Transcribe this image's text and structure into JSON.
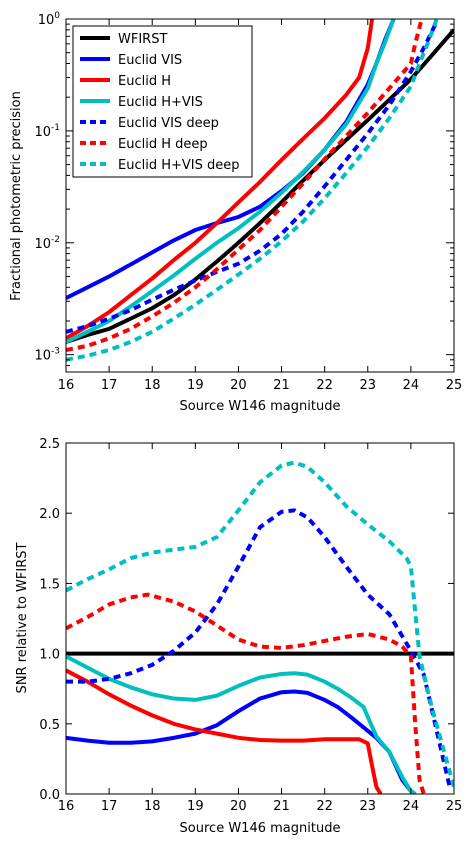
{
  "chart_data": [
    {
      "type": "line",
      "title": "",
      "xlabel": "Source W146 magnitude",
      "ylabel": "Fractional photometric precision",
      "xlim": [
        16,
        25
      ],
      "ylim": [
        0.0007,
        1.0
      ],
      "yscale": "log",
      "grid": false,
      "legend_position": "top-left",
      "xticks": [
        "16",
        "17",
        "18",
        "19",
        "20",
        "21",
        "22",
        "23",
        "24",
        "25"
      ],
      "yticks": [
        {
          "value": 0.001,
          "base": "10",
          "exp": "-3"
        },
        {
          "value": 0.01,
          "base": "10",
          "exp": "-2"
        },
        {
          "value": 0.1,
          "base": "10",
          "exp": "-1"
        },
        {
          "value": 1.0,
          "base": "10",
          "exp": "0"
        }
      ],
      "series": [
        {
          "name": "WFIRST",
          "color": "#000000",
          "dash": "solid",
          "x": [
            16,
            16.5,
            17,
            17.5,
            18,
            18.5,
            19,
            19.5,
            20,
            20.5,
            21,
            21.5,
            22,
            22.5,
            23,
            23.5,
            24,
            24.5,
            25
          ],
          "y": [
            0.0013,
            0.0015,
            0.0017,
            0.0021,
            0.0026,
            0.0034,
            0.0047,
            0.0068,
            0.01,
            0.015,
            0.023,
            0.036,
            0.055,
            0.083,
            0.125,
            0.19,
            0.29,
            0.48,
            0.8
          ]
        },
        {
          "name": "Euclid VIS",
          "color": "#0000ff",
          "dash": "solid",
          "x": [
            16,
            16.5,
            17,
            17.5,
            18,
            18.5,
            19,
            19.5,
            20,
            20.5,
            21,
            21.5,
            22,
            22.5,
            23,
            23.2,
            23.4,
            23.6
          ],
          "y": [
            0.0032,
            0.004,
            0.005,
            0.0064,
            0.0082,
            0.0105,
            0.013,
            0.015,
            0.017,
            0.021,
            0.029,
            0.042,
            0.068,
            0.12,
            0.26,
            0.4,
            0.65,
            1.0
          ]
        },
        {
          "name": "Euclid H",
          "color": "#ff0000",
          "dash": "solid",
          "x": [
            16,
            16.5,
            17,
            17.5,
            18,
            18.5,
            19,
            19.5,
            20,
            20.5,
            21,
            21.5,
            22,
            22.5,
            22.8,
            23.0,
            23.1
          ],
          "y": [
            0.0014,
            0.0018,
            0.0024,
            0.0034,
            0.0048,
            0.007,
            0.01,
            0.015,
            0.023,
            0.035,
            0.055,
            0.085,
            0.13,
            0.21,
            0.3,
            0.55,
            1.0
          ]
        },
        {
          "name": "Euclid H+VIS",
          "color": "#00bfbf",
          "dash": "solid",
          "x": [
            16,
            16.5,
            17,
            17.5,
            18,
            18.5,
            19,
            19.5,
            20,
            20.5,
            21,
            21.5,
            22,
            22.5,
            23,
            23.2,
            23.4,
            23.6
          ],
          "y": [
            0.0013,
            0.0016,
            0.002,
            0.0027,
            0.0037,
            0.0051,
            0.0072,
            0.01,
            0.0135,
            0.019,
            0.028,
            0.043,
            0.068,
            0.115,
            0.24,
            0.4,
            0.62,
            1.0
          ]
        },
        {
          "name": "Euclid VIS deep",
          "color": "#0000ff",
          "dash": "dashed",
          "x": [
            16,
            16.5,
            17,
            17.5,
            18,
            18.5,
            19,
            19.5,
            20,
            20.5,
            21,
            21.5,
            22,
            22.5,
            23,
            23.5,
            24,
            24.3,
            24.6
          ],
          "y": [
            0.0016,
            0.0018,
            0.0021,
            0.0025,
            0.0031,
            0.0038,
            0.0046,
            0.0055,
            0.0065,
            0.0085,
            0.012,
            0.019,
            0.032,
            0.055,
            0.095,
            0.17,
            0.34,
            0.55,
            0.95
          ]
        },
        {
          "name": "Euclid H deep",
          "color": "#ff0000",
          "dash": "dashed",
          "x": [
            16,
            16.5,
            17,
            17.5,
            18,
            18.5,
            19,
            19.5,
            20,
            20.5,
            21,
            21.5,
            22,
            22.5,
            23,
            23.5,
            24,
            24.1,
            24.25
          ],
          "y": [
            0.0011,
            0.0012,
            0.0014,
            0.0017,
            0.0022,
            0.0029,
            0.004,
            0.0058,
            0.0087,
            0.013,
            0.021,
            0.034,
            0.056,
            0.09,
            0.145,
            0.24,
            0.4,
            0.6,
            1.0
          ]
        },
        {
          "name": "Euclid H+VIS deep",
          "color": "#00bfbf",
          "dash": "dashed",
          "x": [
            16,
            16.5,
            17,
            17.5,
            18,
            18.5,
            19,
            19.5,
            20,
            20.5,
            21,
            21.5,
            22,
            22.5,
            23,
            23.5,
            24,
            24.2,
            24.4,
            24.6
          ],
          "y": [
            0.0009,
            0.00098,
            0.0011,
            0.0013,
            0.0016,
            0.0021,
            0.0028,
            0.0038,
            0.0052,
            0.0072,
            0.0103,
            0.0155,
            0.025,
            0.042,
            0.072,
            0.13,
            0.25,
            0.4,
            0.62,
            1.0
          ]
        }
      ]
    },
    {
      "type": "line",
      "title": "",
      "xlabel": "Source W146 magnitude",
      "ylabel": "SNR relative to WFIRST",
      "xlim": [
        16,
        25
      ],
      "ylim": [
        0.0,
        2.5
      ],
      "grid": false,
      "xticks": [
        "16",
        "17",
        "18",
        "19",
        "20",
        "21",
        "22",
        "23",
        "24",
        "25"
      ],
      "yticks": [
        "0.0",
        "0.5",
        "1.0",
        "1.5",
        "2.0",
        "2.5"
      ],
      "series": [
        {
          "name": "WFIRST",
          "color": "#000000",
          "dash": "solid",
          "x": [
            16,
            25
          ],
          "y": [
            1.0,
            1.0
          ]
        },
        {
          "name": "Euclid VIS",
          "color": "#0000ff",
          "dash": "solid",
          "x": [
            16,
            16.5,
            17,
            17.5,
            18,
            18.5,
            19,
            19.5,
            20,
            20.5,
            21,
            21.3,
            21.6,
            22,
            22.3,
            22.6,
            23,
            23.2,
            23.5,
            23.8,
            24.0,
            24.1
          ],
          "y": [
            0.4,
            0.38,
            0.365,
            0.365,
            0.375,
            0.4,
            0.43,
            0.49,
            0.59,
            0.68,
            0.725,
            0.73,
            0.72,
            0.67,
            0.62,
            0.55,
            0.45,
            0.4,
            0.3,
            0.1,
            0.02,
            0.0
          ]
        },
        {
          "name": "Euclid H",
          "color": "#ff0000",
          "dash": "solid",
          "x": [
            16,
            16.5,
            17,
            17.5,
            18,
            18.5,
            19,
            19.5,
            20,
            20.5,
            21,
            21.5,
            22,
            22.5,
            22.8,
            23.0,
            23.1,
            23.2,
            23.3
          ],
          "y": [
            0.88,
            0.8,
            0.71,
            0.63,
            0.56,
            0.5,
            0.46,
            0.43,
            0.4,
            0.385,
            0.38,
            0.38,
            0.39,
            0.39,
            0.39,
            0.36,
            0.2,
            0.05,
            0.0
          ]
        },
        {
          "name": "Euclid H+VIS",
          "color": "#00bfbf",
          "dash": "solid",
          "x": [
            16,
            16.5,
            17,
            17.5,
            18,
            18.5,
            19,
            19.5,
            20,
            20.5,
            21,
            21.3,
            21.6,
            22,
            22.3,
            22.6,
            22.9,
            23.0,
            23.2,
            23.5,
            23.8,
            24.0,
            24.1
          ],
          "y": [
            0.98,
            0.9,
            0.82,
            0.76,
            0.71,
            0.68,
            0.67,
            0.7,
            0.77,
            0.83,
            0.855,
            0.86,
            0.85,
            0.8,
            0.75,
            0.69,
            0.62,
            0.55,
            0.41,
            0.3,
            0.12,
            0.02,
            0.0
          ]
        },
        {
          "name": "Euclid VIS deep",
          "color": "#0000ff",
          "dash": "dashed",
          "x": [
            16,
            16.5,
            17,
            17.5,
            18,
            18.5,
            19,
            19.5,
            20,
            20.5,
            21,
            21.3,
            21.6,
            22,
            22.5,
            23,
            23.5,
            24,
            24.3,
            24.6,
            24.9
          ],
          "y": [
            0.8,
            0.8,
            0.82,
            0.86,
            0.92,
            1.02,
            1.15,
            1.35,
            1.62,
            1.9,
            2.01,
            2.02,
            1.97,
            1.83,
            1.62,
            1.42,
            1.28,
            1.02,
            0.85,
            0.45,
            0.05
          ]
        },
        {
          "name": "Euclid H deep",
          "color": "#ff0000",
          "dash": "dashed",
          "x": [
            16,
            16.5,
            17,
            17.5,
            17.9,
            18.5,
            19,
            19.5,
            20,
            20.5,
            21,
            21.5,
            22,
            22.5,
            23,
            23.5,
            23.8,
            24.0,
            24.1,
            24.2,
            24.3
          ],
          "y": [
            1.18,
            1.26,
            1.35,
            1.4,
            1.42,
            1.37,
            1.3,
            1.2,
            1.1,
            1.05,
            1.04,
            1.06,
            1.09,
            1.12,
            1.14,
            1.1,
            1.05,
            0.98,
            0.5,
            0.1,
            0.0
          ]
        },
        {
          "name": "Euclid H+VIS deep",
          "color": "#00bfbf",
          "dash": "dashed",
          "x": [
            16,
            16.5,
            17,
            17.5,
            18,
            18.5,
            19,
            19.5,
            20,
            20.5,
            21,
            21.3,
            21.6,
            22,
            22.5,
            23,
            23.5,
            23.9,
            24.0,
            24.1,
            24.2,
            24.5,
            25
          ],
          "y": [
            1.45,
            1.53,
            1.6,
            1.68,
            1.72,
            1.74,
            1.76,
            1.83,
            2.02,
            2.22,
            2.34,
            2.36,
            2.33,
            2.22,
            2.05,
            1.92,
            1.8,
            1.68,
            1.62,
            1.3,
            0.98,
            0.6,
            0.05
          ]
        }
      ]
    }
  ]
}
